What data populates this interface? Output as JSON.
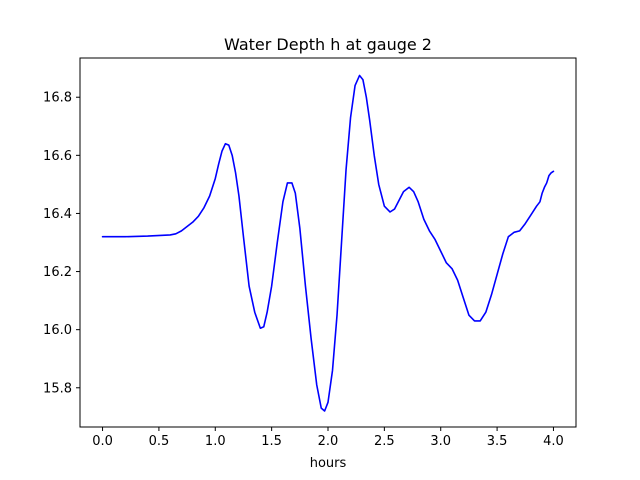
{
  "chart_data": {
    "type": "line",
    "title": "Water Depth h at gauge 2",
    "xlabel": "hours",
    "ylabel": "",
    "xlim": [
      -0.2,
      4.2
    ],
    "ylim": [
      15.665,
      16.935
    ],
    "xticks": [
      0.0,
      0.5,
      1.0,
      1.5,
      2.0,
      2.5,
      3.0,
      3.5,
      4.0
    ],
    "xtick_labels": [
      "0.0",
      "0.5",
      "1.0",
      "1.5",
      "2.0",
      "2.5",
      "3.0",
      "3.5",
      "4.0"
    ],
    "yticks": [
      15.8,
      16.0,
      16.2,
      16.4,
      16.6,
      16.8
    ],
    "ytick_labels": [
      "15.8",
      "16.0",
      "16.2",
      "16.4",
      "16.6",
      "16.8"
    ],
    "grid": false,
    "series": [
      {
        "name": "",
        "color": "#0000ff",
        "x": [
          0.0,
          0.2,
          0.4,
          0.6,
          0.65,
          0.7,
          0.75,
          0.8,
          0.85,
          0.9,
          0.95,
          1.0,
          1.03,
          1.06,
          1.09,
          1.12,
          1.15,
          1.18,
          1.21,
          1.25,
          1.3,
          1.35,
          1.4,
          1.43,
          1.46,
          1.5,
          1.55,
          1.6,
          1.64,
          1.68,
          1.71,
          1.75,
          1.8,
          1.85,
          1.9,
          1.94,
          1.97,
          2.0,
          2.04,
          2.08,
          2.12,
          2.16,
          2.2,
          2.24,
          2.28,
          2.31,
          2.34,
          2.37,
          2.41,
          2.45,
          2.5,
          2.55,
          2.59,
          2.63,
          2.67,
          2.72,
          2.76,
          2.8,
          2.85,
          2.9,
          2.95,
          3.0,
          3.05,
          3.1,
          3.15,
          3.2,
          3.25,
          3.3,
          3.35,
          3.4,
          3.45,
          3.5,
          3.55,
          3.6,
          3.65,
          3.7,
          3.75,
          3.8,
          3.85,
          3.88,
          3.9,
          3.92,
          3.94,
          3.96,
          3.98,
          4.0
        ],
        "values": [
          16.32,
          16.32,
          16.322,
          16.326,
          16.33,
          16.34,
          16.355,
          16.37,
          16.39,
          16.42,
          16.46,
          16.52,
          16.57,
          16.615,
          16.64,
          16.635,
          16.6,
          16.54,
          16.46,
          16.32,
          16.15,
          16.06,
          16.005,
          16.01,
          16.06,
          16.15,
          16.3,
          16.44,
          16.505,
          16.505,
          16.47,
          16.35,
          16.15,
          15.97,
          15.81,
          15.73,
          15.72,
          15.75,
          15.86,
          16.05,
          16.3,
          16.55,
          16.73,
          16.84,
          16.875,
          16.86,
          16.8,
          16.72,
          16.6,
          16.5,
          16.425,
          16.405,
          16.415,
          16.445,
          16.475,
          16.49,
          16.475,
          16.44,
          16.38,
          16.34,
          16.31,
          16.27,
          16.23,
          16.21,
          16.17,
          16.11,
          16.05,
          16.03,
          16.03,
          16.06,
          16.12,
          16.19,
          16.26,
          16.32,
          16.335,
          16.34,
          16.365,
          16.395,
          16.425,
          16.44,
          16.47,
          16.49,
          16.505,
          16.53,
          16.54,
          16.545
        ]
      }
    ]
  }
}
